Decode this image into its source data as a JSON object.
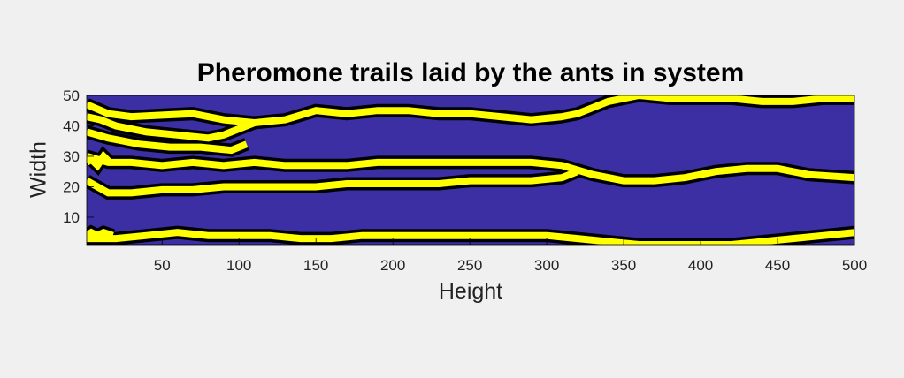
{
  "chart_data": {
    "type": "heatmap",
    "title": "Pheromone trails laid by the ants in system",
    "xlabel": "Height",
    "ylabel": "Width",
    "xlim": [
      1,
      500
    ],
    "ylim": [
      1,
      50
    ],
    "xticks": [
      50,
      100,
      150,
      200,
      250,
      300,
      350,
      400,
      450,
      500
    ],
    "yticks": [
      10,
      20,
      30,
      40,
      50
    ],
    "grid": false,
    "legend": "none",
    "colors": {
      "background": "#3b2fa3",
      "trail": "#ffff00",
      "contour": "#000000",
      "figure": "#f0f0f0"
    },
    "series": [
      {
        "x": [
          1,
          15,
          30,
          50,
          70,
          90,
          110,
          130,
          150,
          170,
          190,
          210,
          230,
          250,
          270,
          290,
          310,
          320,
          330,
          340,
          360,
          380,
          400,
          420,
          440,
          460,
          480,
          500
        ],
        "y": [
          47,
          44,
          43,
          43.5,
          44,
          42,
          41,
          42,
          45,
          44,
          45,
          45,
          44,
          44,
          43,
          42,
          43,
          44,
          46,
          48,
          50,
          49,
          49,
          49,
          48,
          48,
          49,
          49
        ]
      },
      {
        "x": [
          1,
          10,
          20,
          40,
          60,
          80,
          90,
          100,
          110
        ],
        "y": [
          43,
          42,
          40,
          38,
          37,
          36,
          37,
          39,
          41
        ]
      },
      {
        "x": [
          1,
          15,
          35,
          55,
          75,
          95,
          105
        ],
        "y": [
          38,
          36,
          34,
          33,
          33,
          32,
          34
        ]
      },
      {
        "x": [
          1,
          15,
          30,
          50,
          70,
          90,
          110,
          130,
          150,
          170,
          190,
          210,
          230,
          250,
          270,
          290,
          310,
          330,
          350,
          370,
          390,
          410,
          430,
          450,
          470,
          500
        ],
        "y": [
          30,
          28,
          28,
          27,
          28,
          27,
          28,
          27,
          27,
          27,
          28,
          28,
          28,
          28,
          28,
          28,
          27,
          24,
          22,
          22,
          23,
          25,
          26,
          26,
          24,
          23
        ]
      },
      {
        "x": [
          1,
          15,
          30,
          50,
          70,
          90,
          110,
          130,
          150,
          170,
          190,
          210,
          230,
          250,
          270,
          290,
          310,
          320
        ],
        "y": [
          22,
          18,
          18,
          19,
          19,
          20,
          20,
          20,
          20,
          21,
          21,
          21,
          21,
          22,
          22,
          22,
          23,
          25
        ]
      },
      {
        "x": [
          1,
          20,
          40,
          60,
          80,
          100,
          120,
          140,
          160,
          180,
          200,
          220,
          240,
          260,
          280,
          300,
          320,
          340,
          360,
          380,
          400,
          420,
          440,
          460,
          480,
          500
        ],
        "y": [
          3,
          3,
          4,
          5,
          4,
          4,
          4,
          3,
          3,
          4,
          4,
          4,
          4,
          4,
          4,
          4,
          3,
          2,
          1,
          1,
          1,
          1,
          2,
          3,
          4,
          5
        ]
      },
      {
        "x": [
          1,
          4,
          8,
          12,
          16
        ],
        "y": [
          28,
          29,
          27,
          30,
          28
        ]
      },
      {
        "x": [
          1,
          4,
          8,
          12,
          18
        ],
        "y": [
          4,
          5,
          4,
          5,
          4
        ]
      }
    ]
  }
}
